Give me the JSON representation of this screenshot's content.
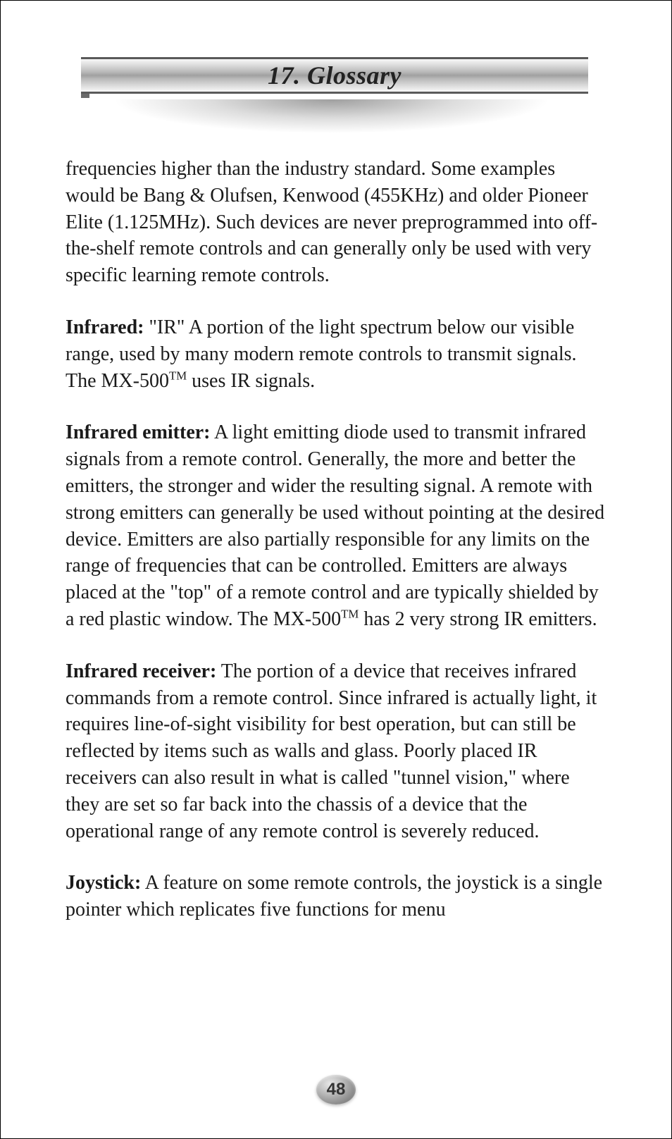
{
  "section_number": "17.",
  "section_title": "Glossary",
  "title_fontsize": 36,
  "title_color": "#222222",
  "bar_gradient_stops": [
    "#f8f8f8",
    "#dcdcdc",
    "#b8b8b8",
    "#a0a0a0",
    "#b8b8b8",
    "#dcdcdc",
    "#f8f8f8"
  ],
  "bar_border_color": "#5a5a5a",
  "accent_color": "#6a6a6a",
  "body_fontsize": 28,
  "body_color": "#1a1a1a",
  "background_color": "#ffffff",
  "page_border_color": "#000000",
  "page_number": "48",
  "page_number_fontsize": 24,
  "page_number_bg_stops": [
    "#e8e8e8",
    "#bcbcbc",
    "#8c8c8c",
    "#6a6a6a"
  ],
  "paragraphs": {
    "intro_continuation": "frequencies higher than the industry standard. Some examples would be Bang & Olufsen, Kenwood (455KHz) and older Pioneer Elite (1.125MHz). Such devices are never preprogrammed into off-the-shelf remote controls and can generally only be used with very specific learning remote controls.",
    "infrared_term": "Infrared:",
    "infrared_body_a": " \"IR\" A portion of the light spectrum below our visible range, used by many modern remote controls to transmit signals. The MX-500",
    "infrared_body_b": " uses IR signals.",
    "emitter_term": "Infrared emitter:",
    "emitter_body_a": " A light emitting diode used to transmit infrared signals from a remote control. Generally, the more and better the emitters, the stronger and wider the resulting signal. A remote with strong emitters can generally be used without pointing at the desired device. Emitters are also partially responsible for any limits on the range of frequencies that can be controlled. Emitters are always placed at the \"top\" of a remote control and are typically shielded by a red plastic window. The MX-500",
    "emitter_body_b": " has 2 very strong IR emitters.",
    "receiver_term": "Infrared receiver:",
    "receiver_body": " The portion of a device that receives infrared commands from a remote control. Since infrared is actually light, it requires line-of-sight visibility for best operation, but can still be reflected by items such as walls and glass. Poorly placed IR receivers can also result in what is called \"tunnel vision,\" where they are set so far back into the chassis of a device that the operational range of any remote control is severely reduced.",
    "joystick_term": "Joystick:",
    "joystick_body": " A feature on some remote controls, the joystick is a single pointer which replicates five functions for menu",
    "tm_symbol": "TM"
  }
}
